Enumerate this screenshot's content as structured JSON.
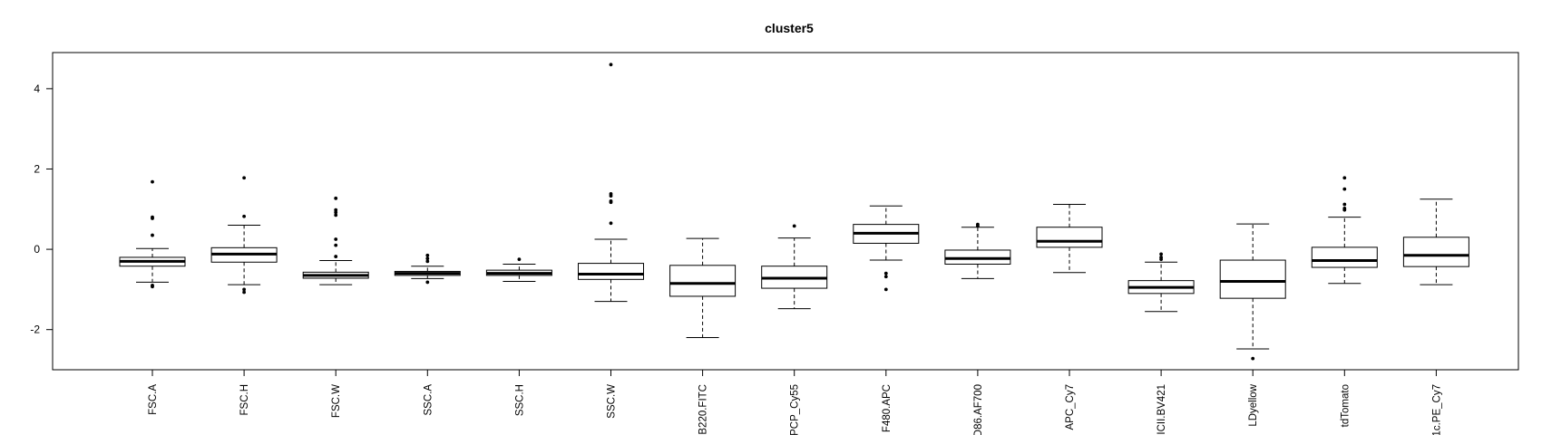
{
  "chart_data": {
    "type": "boxplot",
    "title": "cluster5",
    "xlabel": "",
    "ylabel": "",
    "ylim": [
      -3.0,
      4.9
    ],
    "yticks": [
      -2,
      0,
      2,
      4
    ],
    "grid": false,
    "legend": "none",
    "categories": [
      "FSC.A",
      "FSC.H",
      "FSC.W",
      "SSC.A",
      "SSC.H",
      "SSC.W",
      "B220.FITC",
      "PCP_Cy55",
      "F480.APC",
      "D86.AF700",
      "APC_Cy7",
      "ICII.BV421",
      "LDyellow",
      "tdTomato",
      "1c.PE_Cy7"
    ],
    "boxes": [
      {
        "whisker_low": -0.82,
        "q1": -0.42,
        "median": -0.3,
        "q3": -0.2,
        "whisker_high": 0.02,
        "outliers": [
          -0.9,
          -0.93,
          0.35,
          0.77,
          0.8,
          1.68
        ]
      },
      {
        "whisker_low": -0.88,
        "q1": -0.32,
        "median": -0.12,
        "q3": 0.04,
        "whisker_high": 0.6,
        "outliers": [
          -1.0,
          -1.07,
          0.82,
          1.78
        ]
      },
      {
        "whisker_low": -0.88,
        "q1": -0.72,
        "median": -0.65,
        "q3": -0.57,
        "whisker_high": -0.28,
        "outliers": [
          -0.18,
          0.1,
          0.25,
          0.85,
          0.92,
          0.98,
          1.27
        ]
      },
      {
        "whisker_low": -0.73,
        "q1": -0.65,
        "median": -0.6,
        "q3": -0.55,
        "whisker_high": -0.42,
        "outliers": [
          -0.82,
          -0.3,
          -0.23,
          -0.15
        ]
      },
      {
        "whisker_low": -0.8,
        "q1": -0.65,
        "median": -0.6,
        "q3": -0.52,
        "whisker_high": -0.37,
        "outliers": [
          -0.25
        ]
      },
      {
        "whisker_low": -1.3,
        "q1": -0.75,
        "median": -0.62,
        "q3": -0.35,
        "whisker_high": 0.25,
        "outliers": [
          0.65,
          1.17,
          1.2,
          1.33,
          1.38,
          4.6
        ]
      },
      {
        "whisker_low": -2.2,
        "q1": -1.17,
        "median": -0.85,
        "q3": -0.4,
        "whisker_high": 0.27,
        "outliers": []
      },
      {
        "whisker_low": -1.48,
        "q1": -0.97,
        "median": -0.72,
        "q3": -0.42,
        "whisker_high": 0.28,
        "outliers": [
          0.58
        ]
      },
      {
        "whisker_low": -0.27,
        "q1": 0.15,
        "median": 0.4,
        "q3": 0.62,
        "whisker_high": 1.08,
        "outliers": [
          -0.6,
          -0.68,
          -1.0
        ]
      },
      {
        "whisker_low": -0.73,
        "q1": -0.37,
        "median": -0.23,
        "q3": -0.02,
        "whisker_high": 0.55,
        "outliers": [
          0.58,
          0.62
        ]
      },
      {
        "whisker_low": -0.58,
        "q1": 0.05,
        "median": 0.2,
        "q3": 0.55,
        "whisker_high": 1.12,
        "outliers": []
      },
      {
        "whisker_low": -1.55,
        "q1": -1.1,
        "median": -0.95,
        "q3": -0.78,
        "whisker_high": -0.32,
        "outliers": [
          -0.25,
          -0.2,
          -0.12
        ]
      },
      {
        "whisker_low": -2.48,
        "q1": -1.22,
        "median": -0.8,
        "q3": -0.27,
        "whisker_high": 0.63,
        "outliers": [
          -2.72
        ]
      },
      {
        "whisker_low": -0.85,
        "q1": -0.45,
        "median": -0.28,
        "q3": 0.05,
        "whisker_high": 0.8,
        "outliers": [
          0.98,
          1.02,
          1.12,
          1.5,
          1.78
        ]
      },
      {
        "whisker_low": -0.88,
        "q1": -0.43,
        "median": -0.15,
        "q3": 0.3,
        "whisker_high": 1.25,
        "outliers": []
      }
    ]
  }
}
